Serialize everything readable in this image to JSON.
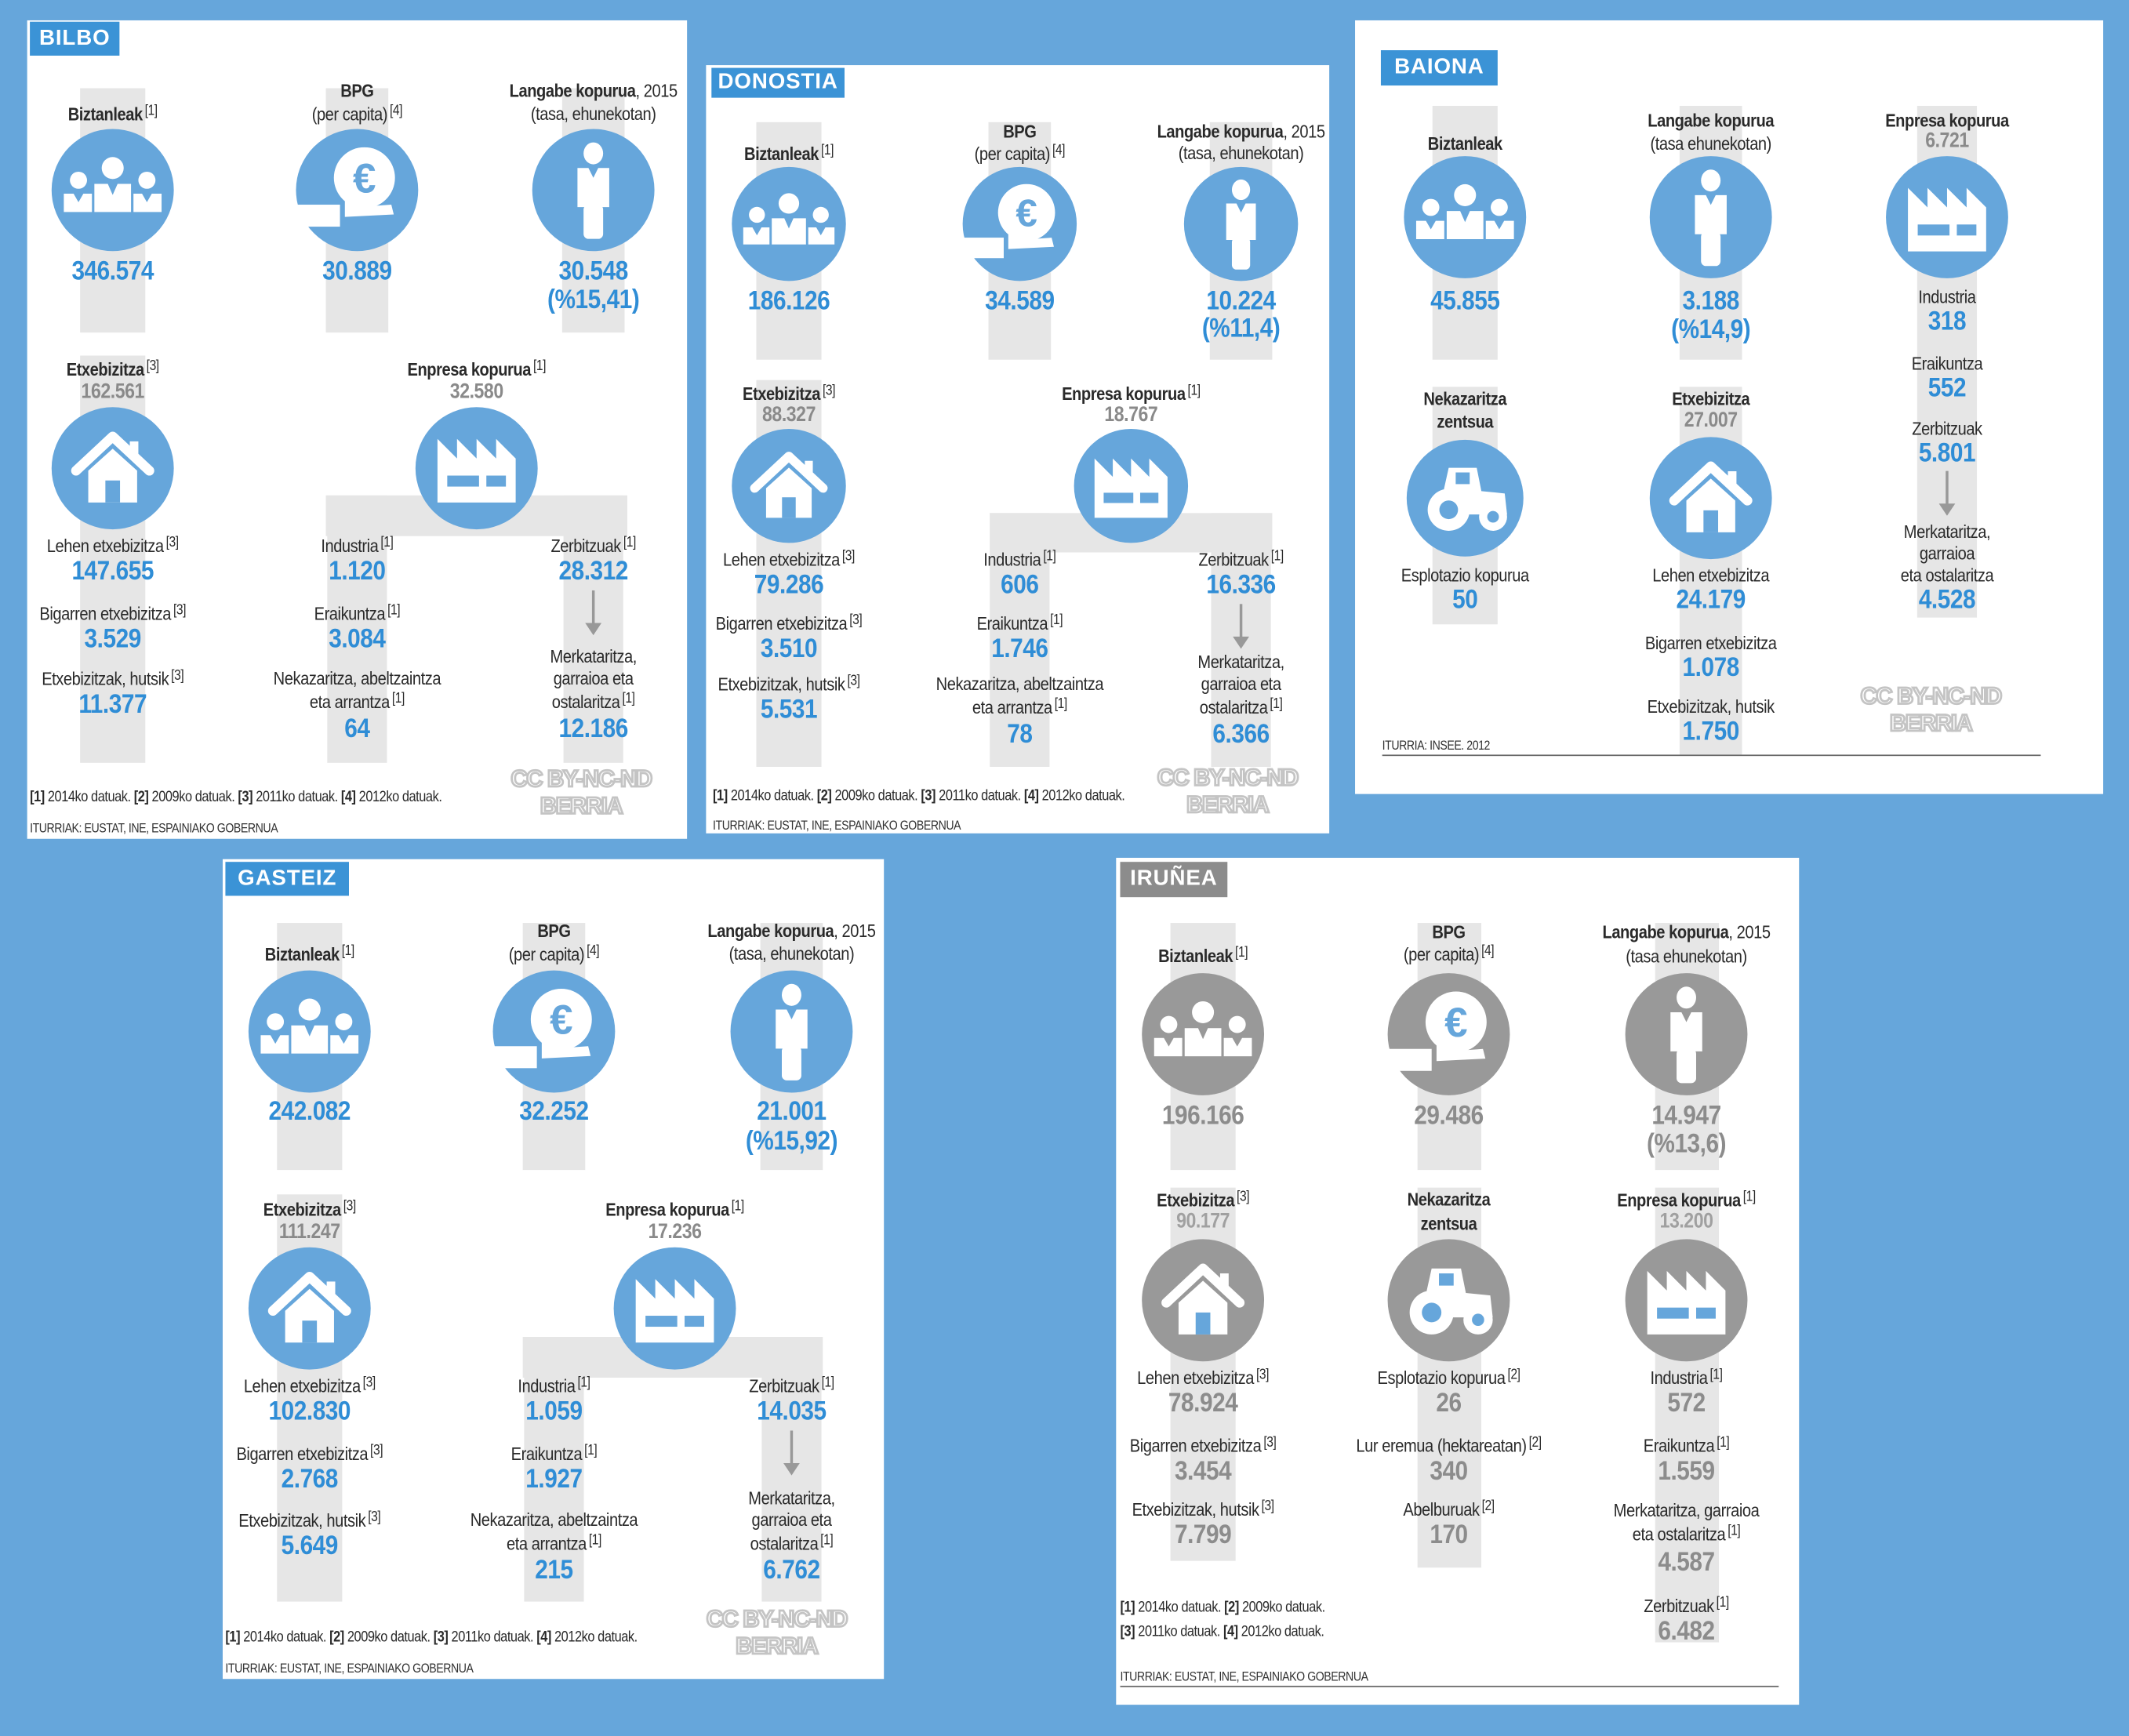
{
  "colors": {
    "background": "#66a6db",
    "accent_blue": "#2f8dd6",
    "icon_blue": "#66a6db",
    "badge_blue": "#3b93d6",
    "grey": "#8c8c8c",
    "pillar": "#e6e6e6"
  },
  "watermark": {
    "line1": "CC BY-NC-ND",
    "line2": "BERRIA"
  },
  "bilbo": {
    "title": "BILBO",
    "pop": {
      "label": "Biztanleak",
      "sup": "[1]",
      "value": "346.574",
      "icon": "people-icon"
    },
    "gdp": {
      "label": "BPG",
      "sub": "(per capita)",
      "sup": "[4]",
      "value": "30.889",
      "icon": "euro-hand-icon"
    },
    "unemp": {
      "label": "Langabe kopurua",
      "year": ", 2015",
      "sub": "(tasa, ehunekotan)",
      "value": "30.548",
      "rate": "(%15,41)",
      "icon": "person-icon"
    },
    "housing": {
      "label": "Etxebizitza",
      "sup": "[3]",
      "total": "162.561",
      "icon": "house-icon",
      "items": [
        {
          "label": "Lehen etxebizitza",
          "sup": "[3]",
          "value": "147.655"
        },
        {
          "label": "Bigarren etxebizitza",
          "sup": "[3]",
          "value": "3.529"
        },
        {
          "label": "Etxebizitzak, hutsik",
          "sup": "[3]",
          "value": "11.377"
        }
      ]
    },
    "companies": {
      "label": "Enpresa kopurua",
      "sup": "[1]",
      "total": "32.580",
      "icon": "factory-icon",
      "items": [
        {
          "lines": [
            "Industria"
          ],
          "sup": "[1]",
          "value": "1.120"
        },
        {
          "lines": [
            "Eraikuntza"
          ],
          "sup": "[1]",
          "value": "3.084"
        },
        {
          "lines": [
            "Nekazaritza, abeltzaintza",
            "eta arrantza"
          ],
          "sup": "[1]",
          "value": "64"
        },
        {
          "lines": [
            "Zerbitzuak"
          ],
          "sup": "[1]",
          "value": "28.312"
        },
        {
          "lines": [
            "Merkataritza,",
            "garraioa eta",
            "ostalaritza"
          ],
          "sup": "[1]",
          "value": "12.186"
        }
      ]
    },
    "notes": [
      [
        {
          "ref": "[1]",
          "text": " 2014ko datuak. "
        },
        {
          "ref": "[2]",
          "text": " 2009ko datuak. "
        },
        {
          "ref": "[3]",
          "text": " 2011ko datuak. "
        },
        {
          "ref": "[4]",
          "text": " 2012ko datuak."
        }
      ]
    ],
    "source": "ITURRIAK: EUSTAT, INE, ESPAINIAKO GOBERNUA"
  },
  "donostia": {
    "title": "DONOSTIA",
    "pop": {
      "label": "Biztanleak",
      "sup": "[1]",
      "value": "186.126",
      "icon": "people-icon"
    },
    "gdp": {
      "label": "BPG",
      "sub": "(per capita)",
      "sup": "[4]",
      "value": "34.589",
      "icon": "euro-hand-icon"
    },
    "unemp": {
      "label": "Langabe kopurua",
      "year": ", 2015",
      "sub": "(tasa, ehunekotan)",
      "value": "10.224",
      "rate": "(%11,4)",
      "icon": "person-icon"
    },
    "housing": {
      "label": "Etxebizitza",
      "sup": "[3]",
      "total": "88.327",
      "icon": "house-icon",
      "items": [
        {
          "label": "Lehen etxebizitza",
          "sup": "[3]",
          "value": "79.286"
        },
        {
          "label": "Bigarren etxebizitza",
          "sup": "[3]",
          "value": "3.510"
        },
        {
          "label": "Etxebizitzak, hutsik",
          "sup": "[3]",
          "value": "5.531"
        }
      ]
    },
    "companies": {
      "label": "Enpresa kopurua",
      "sup": "[1]",
      "total": "18.767",
      "icon": "factory-icon",
      "items": [
        {
          "lines": [
            "Industria"
          ],
          "sup": "[1]",
          "value": "606"
        },
        {
          "lines": [
            "Eraikuntza"
          ],
          "sup": "[1]",
          "value": "1.746"
        },
        {
          "lines": [
            "Nekazaritza, abeltzaintza",
            "eta arrantza"
          ],
          "sup": "[1]",
          "value": "78"
        },
        {
          "lines": [
            "Zerbitzuak"
          ],
          "sup": "[1]",
          "value": "16.336"
        },
        {
          "lines": [
            "Merkataritza,",
            "garraioa eta",
            "ostalaritza"
          ],
          "sup": "[1]",
          "value": "6.366"
        }
      ]
    },
    "notes": [
      [
        {
          "ref": "[1]",
          "text": " 2014ko datuak. "
        },
        {
          "ref": "[2]",
          "text": " 2009ko datuak. "
        },
        {
          "ref": "[3]",
          "text": " 2011ko datuak. "
        },
        {
          "ref": "[4]",
          "text": " 2012ko datuak."
        }
      ]
    ],
    "source": "ITURRIAK: EUSTAT, INE, ESPAINIAKO GOBERNUA"
  },
  "baiona": {
    "title": "BAIONA",
    "pop": {
      "label": "Biztanleak",
      "value": "45.855",
      "icon": "people-icon"
    },
    "unemp": {
      "label": "Langabe kopurua",
      "sub": "(tasa ehunekotan)",
      "value": "3.188",
      "rate": "(%14,9)",
      "icon": "person-icon"
    },
    "companies": {
      "label": "Enpresa kopurua",
      "total": "6.721",
      "icon": "factory-icon",
      "items": [
        {
          "lines": [
            "Industria"
          ],
          "value": "318"
        },
        {
          "lines": [
            "Eraikuntza"
          ],
          "value": "552"
        },
        {
          "lines": [
            "Zerbitzuak"
          ],
          "value": "5.801"
        },
        {
          "lines": [
            "Merkataritza,",
            "garraioa",
            "eta ostalaritza"
          ],
          "value": "4.528"
        }
      ]
    },
    "agriculture": {
      "lines": [
        "Nekazaritza",
        "zentsua"
      ],
      "icon": "tractor-icon",
      "items": [
        {
          "label": "Esplotazio kopurua",
          "value": "50"
        }
      ]
    },
    "housing": {
      "label": "Etxebizitza",
      "total": "27.007",
      "icon": "house-icon",
      "items": [
        {
          "label": "Lehen etxebizitza",
          "value": "24.179"
        },
        {
          "label": "Bigarren etxebizitza",
          "value": "1.078"
        },
        {
          "label": "Etxebizitzak, hutsik",
          "value": "1.750"
        }
      ]
    },
    "source": "ITURRIA: INSEE. 2012"
  },
  "gasteiz": {
    "title": "GASTEIZ",
    "pop": {
      "label": "Biztanleak",
      "sup": "[1]",
      "value": "242.082",
      "icon": "people-icon"
    },
    "gdp": {
      "label": "BPG",
      "sub": "(per capita)",
      "sup": "[4]",
      "value": "32.252",
      "icon": "euro-hand-icon"
    },
    "unemp": {
      "label": "Langabe kopurua",
      "year": ", 2015",
      "sub": "(tasa, ehunekotan)",
      "value": "21.001",
      "rate": "(%15,92)",
      "icon": "person-icon"
    },
    "housing": {
      "label": "Etxebizitza",
      "sup": "[3]",
      "total": "111.247",
      "icon": "house-icon",
      "items": [
        {
          "label": "Lehen etxebizitza",
          "sup": "[3]",
          "value": "102.830"
        },
        {
          "label": "Bigarren etxebizitza",
          "sup": "[3]",
          "value": "2.768"
        },
        {
          "label": "Etxebizitzak, hutsik",
          "sup": "[3]",
          "value": "5.649"
        }
      ]
    },
    "companies": {
      "label": "Enpresa kopurua",
      "sup": "[1]",
      "total": "17.236",
      "icon": "factory-icon",
      "items": [
        {
          "lines": [
            "Industria"
          ],
          "sup": "[1]",
          "value": "1.059"
        },
        {
          "lines": [
            "Eraikuntza"
          ],
          "sup": "[1]",
          "value": "1.927"
        },
        {
          "lines": [
            "Nekazaritza, abeltzaintza",
            "eta arrantza"
          ],
          "sup": "[1]",
          "value": "215"
        },
        {
          "lines": [
            "Zerbitzuak"
          ],
          "sup": "[1]",
          "value": "14.035"
        },
        {
          "lines": [
            "Merkataritza,",
            "garraioa eta",
            "ostalaritza"
          ],
          "sup": "[1]",
          "value": "6.762"
        }
      ]
    },
    "notes": [
      [
        {
          "ref": "[1]",
          "text": " 2014ko datuak. "
        },
        {
          "ref": "[2]",
          "text": " 2009ko datuak. "
        },
        {
          "ref": "[3]",
          "text": " 2011ko datuak. "
        },
        {
          "ref": "[4]",
          "text": " 2012ko datuak."
        }
      ]
    ],
    "source": "ITURRIAK: EUSTAT, INE, ESPAINIAKO GOBERNUA"
  },
  "iruñea": {
    "title": "IRUÑEA",
    "pop": {
      "label": "Biztanleak",
      "sup": "[1]",
      "value": "196.166",
      "icon": "people-icon"
    },
    "gdp": {
      "label": "BPG",
      "sub": "(per capita)",
      "sup": "[4]",
      "value": "29.486",
      "icon": "euro-hand-icon"
    },
    "unemp": {
      "label": "Langabe kopurua",
      "year": ", 2015",
      "sub": "(tasa ehunekotan)",
      "value": "14.947",
      "rate": "(%13,6)",
      "icon": "person-icon"
    },
    "housing": {
      "label": "Etxebizitza",
      "sup": "[3]",
      "total": "90.177",
      "icon": "house-icon",
      "items": [
        {
          "label": "Lehen etxebizitza",
          "sup": "[3]",
          "value": "78.924"
        },
        {
          "label": "Bigarren etxebizitza",
          "sup": "[3]",
          "value": "3.454"
        },
        {
          "label": "Etxebizitzak, hutsik",
          "sup": "[3]",
          "value": "7.799"
        }
      ]
    },
    "agriculture": {
      "lines": [
        "Nekazaritza",
        "zentsua"
      ],
      "icon": "tractor-icon",
      "items": [
        {
          "label": "Esplotazio kopurua",
          "sup": "[2]",
          "value": "26"
        },
        {
          "label": "Lur eremua (hektareatan)",
          "sup": "[2]",
          "value": "340"
        },
        {
          "label": "Abelburuak",
          "sup": "[2]",
          "value": "170"
        }
      ]
    },
    "companies": {
      "label": "Enpresa kopurua",
      "sup": "[1]",
      "total": "13.200",
      "icon": "factory-icon",
      "items": [
        {
          "lines": [
            "Industria"
          ],
          "sup": "[1]",
          "value": "572"
        },
        {
          "lines": [
            "Eraikuntza"
          ],
          "sup": "[1]",
          "value": "1.559"
        },
        {
          "lines": [
            "Merkataritza, garraioa",
            "eta ostalaritza"
          ],
          "sup": "[1]",
          "value": "4.587"
        },
        {
          "lines": [
            "Zerbitzuak"
          ],
          "sup": "[1]",
          "value": "6.482"
        }
      ]
    },
    "notes": [
      [
        {
          "ref": "[1]",
          "text": " 2014ko datuak. "
        },
        {
          "ref": "[2]",
          "text": " 2009ko datuak."
        }
      ],
      [
        {
          "ref": "[3]",
          "text": " 2011ko datuak. "
        },
        {
          "ref": "[4]",
          "text": " 2012ko datuak."
        }
      ]
    ],
    "source": "ITURRIAK: EUSTAT, INE, ESPAINIAKO GOBERNUA"
  }
}
